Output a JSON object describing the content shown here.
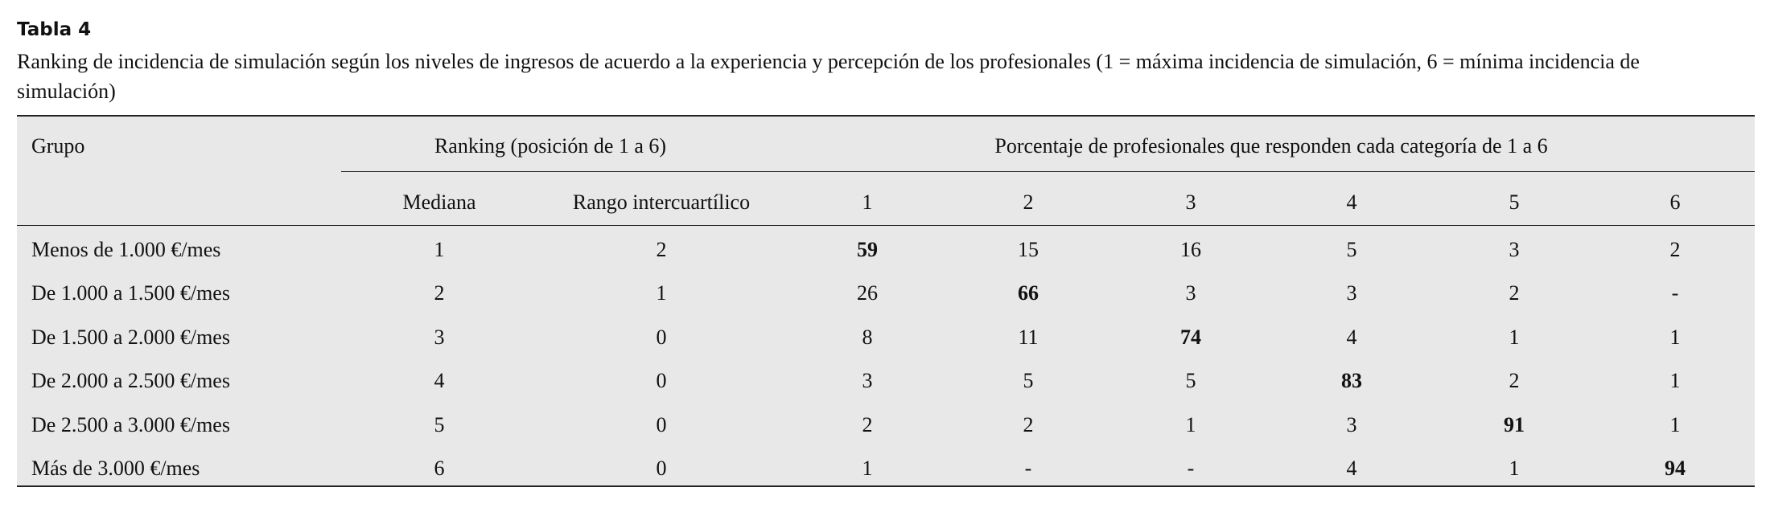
{
  "title": "Tabla 4",
  "caption": "Ranking de incidencia de simulación según los niveles de ingresos de acuerdo a la experiencia y percepción de los profesionales (1 = máxima incidencia de simulación, 6 = mínima incidencia de simulación)",
  "table": {
    "header": {
      "group": "Grupo",
      "ranking": "Ranking (posición de 1 a 6)",
      "percentage": "Porcentaje de profesionales que responden cada categoría de 1 a 6",
      "columns": [
        "Mediana",
        "Rango intercuartílico",
        1,
        2,
        3,
        4,
        5,
        6
      ]
    },
    "rows": [
      [
        "Menos de 1.000 €/mes",
        1,
        2,
        59,
        15,
        16,
        5,
        3,
        2
      ],
      [
        "De 1.000 a 1.500 €/mes",
        2,
        1,
        26,
        66,
        3,
        3,
        2,
        "-"
      ],
      [
        "De 1.500 a 2.000 €/mes",
        3,
        0,
        8,
        11,
        74,
        4,
        1,
        1
      ],
      [
        "De 2.000 a 2.500 €/mes",
        4,
        0,
        3,
        5,
        5,
        83,
        2,
        1
      ],
      [
        "De 2.500 a 3.000 €/mes",
        5,
        0,
        2,
        2,
        1,
        3,
        91,
        1
      ],
      [
        "Más de 3.000 €/mes",
        6,
        0,
        1,
        "-",
        "-",
        4,
        1,
        94
      ]
    ]
  }
}
